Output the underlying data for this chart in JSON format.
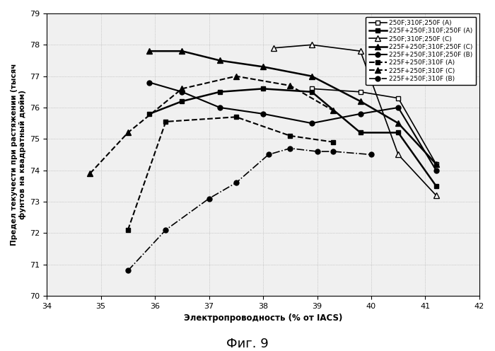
{
  "title": "",
  "xlabel": "Электропроводность (% от IACS)",
  "ylabel": "Предел текучести при растяжении (тысяч\nфунтов на квадратный дюйм)",
  "caption": "Фиг. 9",
  "xlim": [
    34,
    42
  ],
  "ylim": [
    70,
    79
  ],
  "xticks": [
    34,
    35,
    36,
    37,
    38,
    39,
    40,
    41,
    42
  ],
  "yticks": [
    70,
    71,
    72,
    73,
    74,
    75,
    76,
    77,
    78,
    79
  ],
  "series": [
    {
      "label": "250F;310F;250F (A)",
      "x": [
        38.9,
        39.8,
        40.5,
        41.2
      ],
      "y": [
        76.6,
        76.5,
        76.3,
        74.2
      ],
      "color": "black",
      "linestyle": "-",
      "marker": "s",
      "markerfacecolor": "white",
      "markersize": 5,
      "linewidth": 1.2
    },
    {
      "label": "225F+250F;310F;250F (A)",
      "x": [
        35.9,
        36.5,
        37.2,
        38.0,
        38.9,
        39.8,
        40.5,
        41.2
      ],
      "y": [
        75.8,
        76.2,
        76.5,
        76.6,
        76.5,
        75.2,
        75.2,
        73.5
      ],
      "color": "black",
      "linestyle": "-",
      "marker": "s",
      "markerfacecolor": "black",
      "markersize": 5,
      "linewidth": 1.8
    },
    {
      "label": "250F;310F;250F (C)",
      "x": [
        38.2,
        38.9,
        39.8,
        40.5,
        41.2
      ],
      "y": [
        77.9,
        78.0,
        77.8,
        74.5,
        73.2
      ],
      "color": "black",
      "linestyle": "-",
      "marker": "^",
      "markerfacecolor": "white",
      "markersize": 6,
      "linewidth": 1.2
    },
    {
      "label": "225F+250F;310F;250F (C)",
      "x": [
        35.9,
        36.5,
        37.2,
        38.0,
        38.9,
        39.8,
        40.5,
        41.2
      ],
      "y": [
        77.8,
        77.8,
        77.5,
        77.3,
        77.0,
        76.2,
        75.5,
        74.2
      ],
      "color": "black",
      "linestyle": "-",
      "marker": "^",
      "markerfacecolor": "black",
      "markersize": 6,
      "linewidth": 1.8
    },
    {
      "label": "225F+250F;310F;250F (B)",
      "x": [
        35.9,
        36.5,
        37.2,
        38.0,
        38.9,
        39.8,
        40.5,
        41.2
      ],
      "y": [
        76.8,
        76.5,
        76.0,
        75.8,
        75.5,
        75.8,
        76.0,
        74.0
      ],
      "color": "black",
      "linestyle": "-",
      "marker": "o",
      "markerfacecolor": "black",
      "markersize": 5,
      "linewidth": 1.5
    },
    {
      "label": "225F+250F;310F (A)",
      "x": [
        35.5,
        36.2,
        37.5,
        38.5,
        39.3
      ],
      "y": [
        72.1,
        75.55,
        75.7,
        75.1,
        74.9
      ],
      "color": "black",
      "linestyle": "--",
      "marker": "s",
      "markerfacecolor": "black",
      "markersize": 5,
      "linewidth": 1.5
    },
    {
      "label": "225F+250F;310F (C)",
      "x": [
        34.8,
        35.5,
        36.5,
        37.5,
        38.5,
        39.3
      ],
      "y": [
        73.9,
        75.2,
        76.6,
        77.0,
        76.7,
        75.9
      ],
      "color": "black",
      "linestyle": "--",
      "marker": "^",
      "markerfacecolor": "black",
      "markersize": 6,
      "linewidth": 1.5
    },
    {
      "label": "225F+250F;310F (B)",
      "x": [
        35.5,
        36.2,
        37.0,
        37.5,
        38.1,
        38.5,
        39.0,
        39.3,
        40.0
      ],
      "y": [
        70.8,
        72.1,
        73.1,
        73.6,
        74.5,
        74.7,
        74.6,
        74.6,
        74.5
      ],
      "color": "black",
      "linestyle": "-.",
      "marker": "o",
      "markerfacecolor": "black",
      "markersize": 5,
      "linewidth": 1.2
    }
  ],
  "background_color": "#f0f0f0",
  "grid_color": "#aaaaaa",
  "figure_caption": "Фиг. 9"
}
